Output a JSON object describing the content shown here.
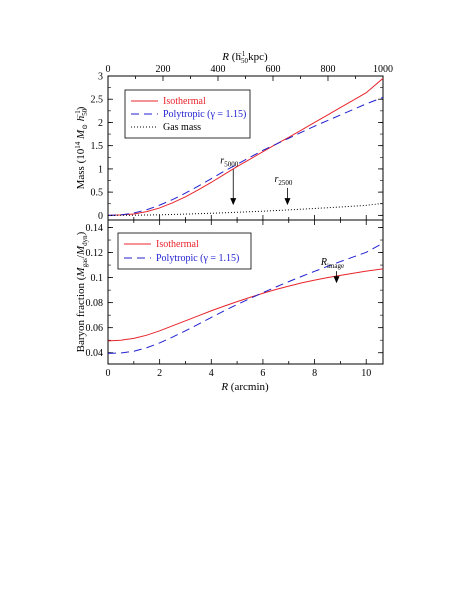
{
  "chart_data": [
    {
      "type": "line",
      "panel": "top",
      "ylabel_main": "Mass (10",
      "ylabel_exp": "14",
      "ylabel_unit_pre": " M",
      "ylabel_unit_sub": "⊙",
      "ylabel_h": " h",
      "ylabel_h_sub": "50",
      "ylabel_h_sup": "−1",
      "ylabel_close": ")",
      "top_axis_label_pre": "R",
      "top_axis_label_mid": " (h",
      "top_axis_label_sub": "50",
      "top_axis_label_sup": "−1",
      "top_axis_label_post": " kpc)",
      "xlim": [
        0,
        10.65
      ],
      "ylim": [
        -0.1,
        3.0
      ],
      "yticks": [
        "0",
        "0.5",
        "1",
        "1.5",
        "2",
        "2.5",
        "3"
      ],
      "top_axis": {
        "ticks": [
          "0",
          "200",
          "400",
          "600",
          "800",
          "1000"
        ],
        "kpc_per_arcmin": 93.9
      },
      "series": [
        {
          "name": "Isothermal",
          "color": "#e8242b",
          "dash": "solid",
          "x": [
            0,
            0.5,
            1,
            1.5,
            2,
            2.5,
            3,
            3.5,
            4,
            4.5,
            5,
            5.5,
            6,
            6.5,
            7,
            7.5,
            8,
            8.5,
            9,
            9.5,
            10,
            10.65
          ],
          "y": [
            0,
            0.01,
            0.03,
            0.08,
            0.16,
            0.27,
            0.4,
            0.55,
            0.71,
            0.88,
            1.05,
            1.21,
            1.37,
            1.53,
            1.68,
            1.84,
            2.0,
            2.16,
            2.32,
            2.48,
            2.64,
            2.95
          ]
        },
        {
          "name": "Polytropic (γ = 1.15)",
          "color": "#2020d0",
          "dash": "long",
          "x": [
            0,
            0.5,
            1,
            1.5,
            2,
            2.5,
            3,
            3.5,
            4,
            4.5,
            5,
            5.5,
            6,
            6.5,
            7,
            7.5,
            8,
            8.5,
            9,
            9.5,
            10,
            10.65
          ],
          "y": [
            0,
            0.01,
            0.05,
            0.12,
            0.22,
            0.34,
            0.48,
            0.63,
            0.79,
            0.95,
            1.1,
            1.25,
            1.4,
            1.53,
            1.66,
            1.79,
            1.92,
            2.04,
            2.16,
            2.28,
            2.4,
            2.54
          ]
        },
        {
          "name": "Gas mass",
          "color": "#000000",
          "dash": "dot",
          "x": [
            0,
            1,
            2,
            3,
            4,
            5,
            6,
            7,
            8,
            9,
            10,
            10.65
          ],
          "y": [
            0,
            0.003,
            0.012,
            0.027,
            0.045,
            0.066,
            0.09,
            0.117,
            0.148,
            0.18,
            0.215,
            0.26
          ]
        }
      ],
      "annotations": [
        {
          "base": "r",
          "sub": "5000",
          "x": 4.85,
          "y_text": 1.12,
          "y_arrow_end": 0.22
        },
        {
          "base": "r",
          "sub": "2500",
          "x": 6.95,
          "y_text": 0.72,
          "y_arrow_end": 0.22
        }
      ]
    },
    {
      "type": "line",
      "panel": "bottom",
      "ylabel_pre": "Baryon fraction (",
      "ylabel_m1": "M",
      "ylabel_m1_sub": "gas",
      "ylabel_slash": "/",
      "ylabel_m2": "M",
      "ylabel_m2_sub": "dyn",
      "ylabel_close": ")",
      "xlabel_pre": "R",
      "xlabel_post": " (arcmin)",
      "xlim": [
        0,
        10.65
      ],
      "ylim": [
        0.031,
        0.146
      ],
      "xticks": [
        "0",
        "2",
        "4",
        "6",
        "8",
        "10"
      ],
      "yticks": [
        "0.04",
        "0.06",
        "0.08",
        "0.1",
        "0.12",
        "0.14"
      ],
      "series": [
        {
          "name": "Isothermal",
          "color": "#e8242b",
          "dash": "solid",
          "x": [
            0,
            0.5,
            1,
            1.5,
            2,
            2.5,
            3,
            3.5,
            4,
            4.5,
            5,
            5.5,
            6,
            6.5,
            7,
            7.5,
            8,
            8.5,
            9,
            9.5,
            10,
            10.65
          ],
          "y": [
            0.0495,
            0.05,
            0.0515,
            0.054,
            0.0575,
            0.0615,
            0.0655,
            0.0695,
            0.0735,
            0.0772,
            0.0808,
            0.0842,
            0.0875,
            0.0905,
            0.0932,
            0.0958,
            0.098,
            0.1,
            0.1018,
            0.1035,
            0.1052,
            0.107
          ]
        },
        {
          "name": "Polytropic (γ = 1.15)",
          "color": "#2020d0",
          "dash": "long",
          "x": [
            0,
            0.5,
            1,
            1.5,
            2,
            2.5,
            3,
            3.5,
            4,
            4.5,
            5,
            5.5,
            6,
            6.5,
            7,
            7.5,
            8,
            8.5,
            9,
            9.5,
            10,
            10.65
          ],
          "y": [
            0.0395,
            0.0398,
            0.0412,
            0.044,
            0.0478,
            0.0525,
            0.0575,
            0.0628,
            0.0682,
            0.0735,
            0.0785,
            0.0833,
            0.088,
            0.0925,
            0.0968,
            0.101,
            0.105,
            0.109,
            0.1128,
            0.1165,
            0.1202,
            0.1275
          ]
        }
      ],
      "annotations": [
        {
          "base": "R",
          "sub": "image",
          "x": 8.85,
          "y_text": 0.11,
          "y_arrow_end": 0.0955
        }
      ]
    }
  ]
}
